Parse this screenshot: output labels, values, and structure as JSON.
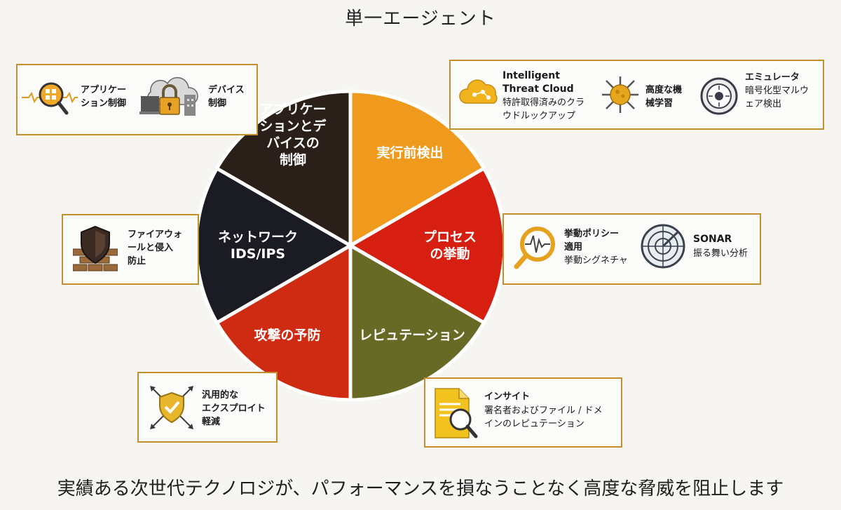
{
  "title": "単一エージェント",
  "footer": "実績ある次世代テクノロジが、パフォーマンスを損なうことなく高度な脅威を阻止します",
  "segments": [
    {
      "id": "preexec",
      "label_lines": [
        "実行前検出"
      ],
      "color": "#ef9a1d"
    },
    {
      "id": "process",
      "label_lines": [
        "プロセス",
        "の挙動"
      ],
      "color": "#d61f10"
    },
    {
      "id": "reputation",
      "label_lines": [
        "レピュテーション"
      ],
      "color": "#676a24"
    },
    {
      "id": "exploit",
      "label_lines": [
        "攻撃の予防"
      ],
      "color": "#cf2a12"
    },
    {
      "id": "network",
      "label_lines": [
        "ネットワーク",
        "IDS/IPS"
      ],
      "color": "#1b1b24"
    },
    {
      "id": "appdevice",
      "label_lines": [
        "アプリケー",
        "ションとデ",
        "バイスの",
        "制御"
      ],
      "color": "#2b1f1a"
    }
  ],
  "boxes": {
    "app_device": {
      "app_label": [
        "アプリケー",
        "ション制御"
      ],
      "device_label": [
        "デバイス",
        "制御"
      ]
    },
    "cloud": {
      "itc_label": [
        "Intelligent",
        "Threat Cloud"
      ],
      "itc_desc": [
        "特許取得済みのクラ",
        "ウドルックアップ"
      ],
      "ml_label": [
        "高度な機",
        "械学習"
      ],
      "emu_label": [
        "エミュレータ"
      ],
      "emu_desc": [
        "暗号化型マルウ",
        "ェア検出"
      ]
    },
    "firewall": {
      "label": [
        "ファイアウォ",
        "ールと侵入",
        "防止"
      ]
    },
    "behavior": {
      "policy_label": [
        "挙動ポリシー",
        "適用"
      ],
      "policy_desc": [
        "挙動シグネチャ"
      ],
      "sonar_label": [
        "SONAR"
      ],
      "sonar_desc": [
        "振る舞い分析"
      ]
    },
    "exploit": {
      "label": [
        "汎用的な",
        "エクスプロイト",
        "軽減"
      ]
    },
    "insight": {
      "label": [
        "インサイト"
      ],
      "desc": [
        "署名者およびファイル / ドメ",
        "インのレピュテーション"
      ]
    }
  },
  "icons": [
    "app-magnifier-icon",
    "device-lock-icon",
    "cloud-icon",
    "virus-icon",
    "emulator-icon",
    "firewall-icon",
    "behavior-magnifier-icon",
    "radar-icon",
    "shield-arrows-icon",
    "document-search-icon"
  ],
  "colors": {
    "accent_border": "#c58f2e",
    "dark": "#1b1b24"
  }
}
